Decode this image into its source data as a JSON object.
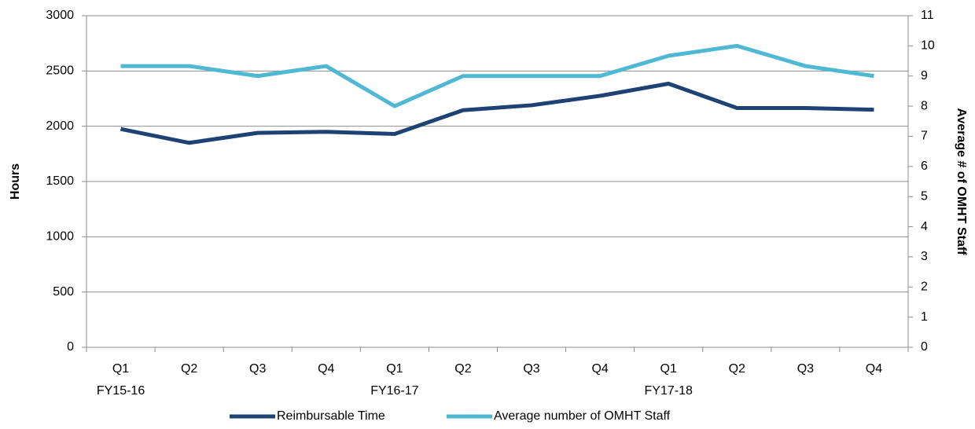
{
  "chart_data": {
    "type": "line",
    "categories": [
      "Q1",
      "Q2",
      "Q3",
      "Q4",
      "Q1",
      "Q2",
      "Q3",
      "Q4",
      "Q1",
      "Q2",
      "Q3",
      "Q4"
    ],
    "category_groups": [
      "FY15-16",
      null,
      null,
      null,
      "FY16-17",
      null,
      null,
      null,
      "FY17-18",
      null,
      null,
      null
    ],
    "y_label": "Hours",
    "y2_label": "Average # of OMHT Staff",
    "ylim": [
      0,
      3000
    ],
    "yticks": [
      0,
      500,
      1000,
      1500,
      2000,
      2500,
      3000
    ],
    "y2lim": [
      0,
      11
    ],
    "y2ticks": [
      0,
      1,
      2,
      3,
      4,
      5,
      6,
      7,
      8,
      9,
      10,
      11
    ],
    "grid": true,
    "legend": "bottom",
    "series": [
      {
        "name": "Reimbursable Time",
        "color": "#1f4274",
        "values": [
          1975,
          1850,
          1940,
          1950,
          1930,
          2145,
          2190,
          2275,
          2385,
          2165,
          2165,
          2150
        ]
      },
      {
        "name": "Average number of OMHT Staff",
        "color": "#4fb8d3",
        "axis": "y2",
        "values": [
          9.33,
          9.33,
          9,
          9.33,
          8,
          9,
          9,
          9,
          9.67,
          10,
          9.33,
          9
        ]
      }
    ]
  }
}
